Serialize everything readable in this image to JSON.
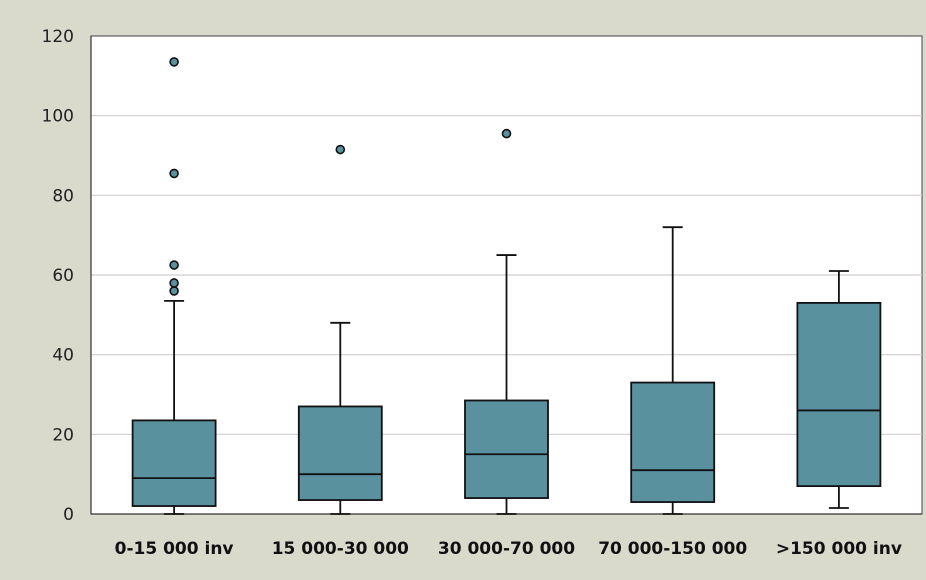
{
  "chart_data": {
    "type": "boxplot",
    "title": "",
    "xlabel": "",
    "ylabel": "",
    "ylim": [
      0,
      120
    ],
    "yticks": [
      0,
      20,
      40,
      60,
      80,
      100,
      120
    ],
    "grid": true,
    "categories": [
      "0-15 000 inv",
      "15 000-30 000",
      "30 000-70 000",
      "70 000-150 000",
      ">150 000 inv"
    ],
    "boxes": [
      {
        "min": 0,
        "q1": 2,
        "median": 9,
        "q3": 23.5,
        "max": 53.5,
        "outliers": [
          56,
          58,
          62.5,
          85.5,
          113.5
        ]
      },
      {
        "min": 0,
        "q1": 3.5,
        "median": 10,
        "q3": 27,
        "max": 48,
        "outliers": [
          91.5
        ]
      },
      {
        "min": 0,
        "q1": 4,
        "median": 15,
        "q3": 28.5,
        "max": 65,
        "outliers": [
          95.5
        ]
      },
      {
        "min": 0,
        "q1": 3,
        "median": 11,
        "q3": 33,
        "max": 72,
        "outliers": []
      },
      {
        "min": 1.5,
        "q1": 7,
        "median": 26,
        "q3": 53,
        "max": 61,
        "outliers": []
      }
    ],
    "colors": {
      "box_fill": "#5a919f",
      "outline": "#111111",
      "grid": "#cfcfcf",
      "plot_bg": "#ffffff",
      "page_bg": "#d9d9cc"
    }
  }
}
